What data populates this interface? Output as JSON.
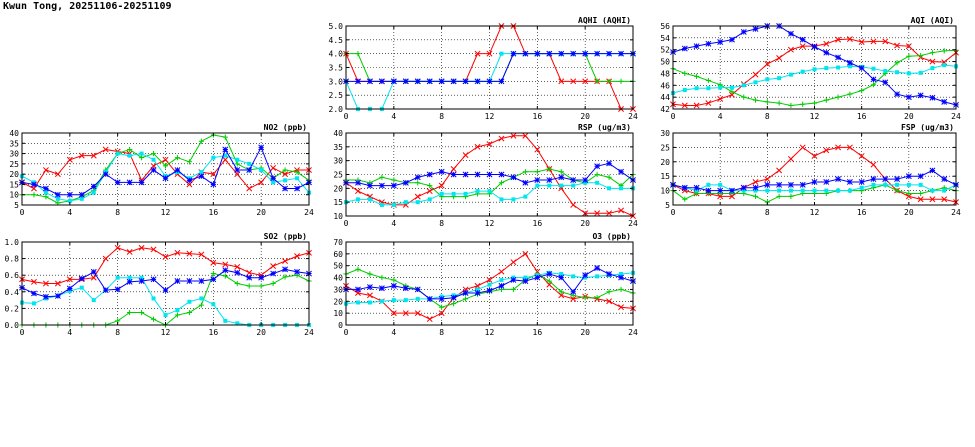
{
  "page": {
    "title": "Kwun Tong, 20251106-20251109"
  },
  "colors": {
    "red": "#ff0000",
    "green": "#00cc00",
    "cyan": "#00e5ee",
    "blue": "#0000ff"
  },
  "chart_data": [
    {
      "id": "no2",
      "type": "line",
      "title": "NO2 (ppb)",
      "xlim": [
        0,
        24
      ],
      "xticks": [
        0,
        4,
        8,
        12,
        16,
        20,
        24
      ],
      "ylim": [
        5,
        40
      ],
      "yticks": [
        5,
        10,
        15,
        20,
        25,
        30,
        35,
        40
      ],
      "series": [
        {
          "color": "red",
          "values": [
            16,
            13,
            22,
            20,
            27,
            29,
            29,
            32,
            31,
            30,
            17,
            24,
            27,
            20,
            15,
            21,
            20,
            27,
            20,
            13,
            16,
            23,
            20,
            22,
            22
          ]
        },
        {
          "color": "green",
          "values": [
            10,
            10,
            9,
            6,
            7,
            9,
            12,
            22,
            30,
            32,
            28,
            30,
            24,
            28,
            26,
            36,
            39,
            38,
            25,
            22,
            23,
            18,
            22,
            21,
            17
          ]
        },
        {
          "color": "cyan",
          "values": [
            19,
            16,
            11,
            8,
            7,
            8,
            11,
            21,
            30,
            29,
            30,
            27,
            19,
            21,
            18,
            21,
            28,
            29,
            27,
            25,
            22,
            16,
            17,
            18,
            11
          ]
        },
        {
          "color": "blue",
          "values": [
            16,
            15,
            13,
            10,
            10,
            10,
            14,
            20,
            16,
            16,
            16,
            22,
            18,
            22,
            17,
            19,
            15,
            32,
            22,
            22,
            33,
            18,
            13,
            13,
            16
          ]
        }
      ]
    },
    {
      "id": "so2",
      "type": "line",
      "title": "SO2 (ppb)",
      "xlim": [
        0,
        24
      ],
      "xticks": [
        0,
        4,
        8,
        12,
        16,
        20,
        24
      ],
      "ylim": [
        0.0,
        1.0
      ],
      "yticks": [
        0.0,
        0.2,
        0.4,
        0.6,
        0.8,
        1.0
      ],
      "series": [
        {
          "color": "red",
          "values": [
            0.55,
            0.52,
            0.5,
            0.5,
            0.55,
            0.55,
            0.57,
            0.8,
            0.93,
            0.88,
            0.93,
            0.91,
            0.82,
            0.87,
            0.86,
            0.85,
            0.75,
            0.73,
            0.7,
            0.63,
            0.6,
            0.71,
            0.77,
            0.83,
            0.87
          ]
        },
        {
          "color": "green",
          "values": [
            0.0,
            0.0,
            0.0,
            0.0,
            0.0,
            0.0,
            0.0,
            0.0,
            0.05,
            0.15,
            0.15,
            0.07,
            0.0,
            0.12,
            0.15,
            0.24,
            0.62,
            0.59,
            0.5,
            0.47,
            0.47,
            0.5,
            0.58,
            0.6,
            0.53
          ]
        },
        {
          "color": "cyan",
          "values": [
            0.27,
            0.26,
            0.32,
            0.35,
            0.41,
            0.45,
            0.3,
            0.42,
            0.57,
            0.57,
            0.57,
            0.32,
            0.12,
            0.18,
            0.28,
            0.32,
            0.25,
            0.05,
            0.02,
            0.0,
            0.0,
            0.0,
            0.0,
            0.0,
            0.0
          ]
        },
        {
          "color": "blue",
          "values": [
            0.45,
            0.38,
            0.34,
            0.35,
            0.44,
            0.56,
            0.64,
            0.42,
            0.43,
            0.52,
            0.53,
            0.55,
            0.42,
            0.53,
            0.53,
            0.53,
            0.55,
            0.66,
            0.63,
            0.57,
            0.57,
            0.62,
            0.67,
            0.64,
            0.62
          ]
        }
      ]
    },
    {
      "id": "aqhi",
      "type": "line",
      "title": "AQHI (AQHI)",
      "xlim": [
        0,
        24
      ],
      "xticks": [
        0,
        4,
        8,
        12,
        16,
        20,
        24
      ],
      "ylim": [
        2.0,
        5.0
      ],
      "yticks": [
        2.0,
        2.5,
        3.0,
        3.5,
        4.0,
        4.5,
        5.0
      ],
      "series": [
        {
          "color": "red",
          "values": [
            4,
            3,
            3,
            3,
            3,
            3,
            3,
            3,
            3,
            3,
            3,
            4,
            4,
            5,
            5,
            4,
            4,
            4,
            3,
            3,
            3,
            3,
            3,
            2,
            2
          ]
        },
        {
          "color": "green",
          "values": [
            4,
            4,
            3,
            3,
            3,
            3,
            3,
            3,
            3,
            3,
            3,
            3,
            3,
            3,
            4,
            4,
            4,
            4,
            4,
            4,
            4,
            3,
            3,
            3,
            3
          ]
        },
        {
          "color": "cyan",
          "values": [
            3,
            2,
            2,
            2,
            3,
            3,
            3,
            3,
            3,
            3,
            3,
            3,
            3,
            4,
            4,
            4,
            4,
            4,
            4,
            4,
            4,
            4,
            4,
            4,
            4
          ]
        },
        {
          "color": "blue",
          "values": [
            3,
            3,
            3,
            3,
            3,
            3,
            3,
            3,
            3,
            3,
            3,
            3,
            3,
            3,
            4,
            4,
            4,
            4,
            4,
            4,
            4,
            4,
            4,
            4,
            4
          ]
        }
      ]
    },
    {
      "id": "rsp",
      "type": "line",
      "title": "RSP (ug/m3)",
      "xlim": [
        0,
        24
      ],
      "xticks": [
        0,
        4,
        8,
        12,
        16,
        20,
        24
      ],
      "ylim": [
        10,
        40
      ],
      "yticks": [
        10,
        15,
        20,
        25,
        30,
        35,
        40
      ],
      "series": [
        {
          "color": "red",
          "values": [
            22,
            19,
            17,
            15,
            14,
            14,
            17,
            19,
            21,
            27,
            32,
            35,
            36,
            38,
            39,
            39,
            34,
            27,
            20,
            14,
            11,
            11,
            11,
            12,
            10
          ]
        },
        {
          "color": "green",
          "values": [
            23,
            23,
            22,
            24,
            23,
            22,
            22,
            21,
            17,
            17,
            17,
            18,
            18,
            22,
            24,
            26,
            26,
            27,
            26,
            23,
            22,
            25,
            24,
            21,
            25
          ]
        },
        {
          "color": "cyan",
          "values": [
            15,
            16,
            16,
            14,
            14,
            15,
            15,
            16,
            18,
            18,
            18,
            19,
            19,
            16,
            16,
            17,
            21,
            21,
            21,
            21,
            22,
            22,
            20,
            20,
            20
          ]
        },
        {
          "color": "blue",
          "values": [
            22,
            22,
            21,
            21,
            21,
            22,
            24,
            25,
            26,
            25,
            25,
            25,
            25,
            25,
            24,
            22,
            23,
            23,
            24,
            23,
            23,
            28,
            29,
            26,
            23
          ]
        }
      ]
    },
    {
      "id": "o3",
      "type": "line",
      "title": "O3 (ppb)",
      "xlim": [
        0,
        24
      ],
      "xticks": [
        0,
        4,
        8,
        12,
        16,
        20,
        24
      ],
      "ylim": [
        0,
        70
      ],
      "yticks": [
        0,
        10,
        20,
        30,
        40,
        50,
        60,
        70
      ],
      "series": [
        {
          "color": "red",
          "values": [
            33,
            27,
            25,
            20,
            10,
            10,
            10,
            5,
            10,
            23,
            30,
            33,
            38,
            45,
            53,
            60,
            45,
            34,
            25,
            22,
            24,
            22,
            20,
            15,
            14
          ]
        },
        {
          "color": "green",
          "values": [
            43,
            47,
            43,
            40,
            38,
            33,
            30,
            22,
            15,
            18,
            22,
            26,
            28,
            30,
            30,
            38,
            43,
            37,
            28,
            25,
            23,
            23,
            28,
            30,
            27
          ]
        },
        {
          "color": "cyan",
          "values": [
            18,
            19,
            19,
            20,
            21,
            21,
            22,
            22,
            24,
            25,
            27,
            30,
            34,
            38,
            40,
            40,
            42,
            44,
            43,
            41,
            40,
            41,
            42,
            43,
            44
          ]
        },
        {
          "color": "blue",
          "values": [
            30,
            30,
            32,
            31,
            33,
            31,
            30,
            22,
            22,
            23,
            27,
            27,
            29,
            33,
            38,
            37,
            40,
            43,
            40,
            28,
            42,
            48,
            43,
            40,
            37
          ]
        }
      ]
    },
    {
      "id": "aqi",
      "type": "line",
      "title": "AQI (AQI)",
      "xlim": [
        0,
        24
      ],
      "xticks": [
        0,
        4,
        8,
        12,
        16,
        20,
        24
      ],
      "ylim": [
        42,
        56
      ],
      "yticks": [
        42,
        44,
        46,
        48,
        50,
        52,
        54,
        56
      ],
      "series": [
        {
          "color": "red",
          "values": [
            42.8,
            42.6,
            42.6,
            43,
            43.7,
            44.4,
            46.2,
            47.8,
            49.6,
            50.6,
            52,
            52.6,
            52.6,
            53,
            53.7,
            53.8,
            53.3,
            53.4,
            53.4,
            52.7,
            52.6,
            50.7,
            50,
            49.9,
            51.5
          ]
        },
        {
          "color": "green",
          "values": [
            48.8,
            48,
            47.5,
            46.8,
            46.1,
            44.9,
            44,
            43.5,
            43.2,
            43,
            42.6,
            42.8,
            43,
            43.5,
            44,
            44.5,
            45.1,
            46.1,
            48,
            49.8,
            50.9,
            51,
            51.5,
            51.8,
            51.9
          ]
        },
        {
          "color": "cyan",
          "values": [
            44.7,
            45.2,
            45.5,
            45.5,
            45.6,
            45.6,
            46,
            46.5,
            47,
            47.2,
            47.8,
            48.3,
            48.7,
            48.9,
            49,
            49.2,
            49.1,
            48.8,
            48.4,
            48.2,
            48,
            48.1,
            48.9,
            49.4,
            49.2
          ]
        },
        {
          "color": "blue",
          "values": [
            51.6,
            52.2,
            52.6,
            53,
            53.3,
            53.7,
            55,
            55.5,
            56,
            56,
            54.7,
            53.7,
            52.5,
            51.5,
            50.7,
            49.8,
            48.9,
            47,
            46.5,
            44.5,
            44,
            44.3,
            43.9,
            43.2,
            42.7
          ]
        }
      ]
    },
    {
      "id": "fsp",
      "type": "line",
      "title": "FSP (ug/m3)",
      "xlim": [
        0,
        24
      ],
      "xticks": [
        0,
        4,
        8,
        12,
        16,
        20,
        24
      ],
      "ylim": [
        5,
        30
      ],
      "yticks": [
        5,
        10,
        15,
        20,
        25,
        30
      ],
      "series": [
        {
          "color": "red",
          "values": [
            12,
            10,
            9,
            9,
            8,
            8,
            11,
            13,
            14,
            17,
            21,
            25,
            22,
            24,
            25,
            25,
            22,
            19,
            14,
            10,
            8,
            7,
            7,
            7,
            6
          ]
        },
        {
          "color": "green",
          "values": [
            10,
            7,
            9,
            9,
            9,
            9,
            9,
            8,
            6,
            8,
            8,
            9,
            9,
            9,
            10,
            10,
            10,
            11,
            12,
            10,
            9,
            9,
            10,
            11,
            10
          ]
        },
        {
          "color": "cyan",
          "values": [
            12,
            11,
            10,
            12,
            12,
            10,
            10,
            10,
            10,
            10,
            10,
            10,
            10,
            10,
            10,
            10,
            11,
            12,
            12,
            12,
            12,
            12,
            10,
            10,
            12
          ]
        },
        {
          "color": "blue",
          "values": [
            12,
            11,
            11,
            10,
            10,
            10,
            11,
            11,
            12,
            12,
            12,
            12,
            13,
            13,
            14,
            13,
            13,
            14,
            14,
            14,
            15,
            15,
            17,
            14,
            12
          ]
        }
      ]
    }
  ]
}
